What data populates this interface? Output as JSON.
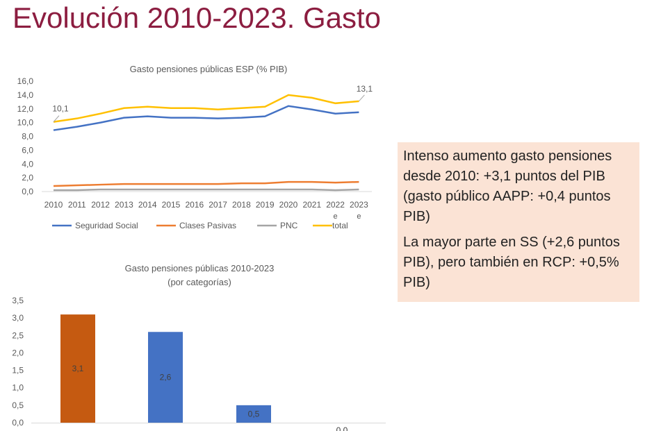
{
  "slide": {
    "title": "Evolución 2010-2023. Gasto"
  },
  "note": {
    "paragraphs": [
      "Intenso aumento gasto pensiones desde 2010: +3,1 puntos del PIB (gasto público AAPP: +0,4 puntos PIB)",
      "La mayor parte en SS (+2,6 puntos PIB), pero también en RCP: +0,5% PIB)"
    ]
  },
  "chart_data": [
    {
      "type": "line",
      "title": "Gasto pensiones públicas ESP (% PIB)",
      "categories": [
        "2010",
        "2011",
        "2012",
        "2013",
        "2014",
        "2015",
        "2016",
        "2017",
        "2018",
        "2019",
        "2020",
        "2021",
        "2022 e",
        "2023 e"
      ],
      "ylim": [
        0,
        16
      ],
      "yticks": [
        "0,0",
        "2,0",
        "4,0",
        "6,0",
        "8,0",
        "10,0",
        "12,0",
        "14,0",
        "16,0"
      ],
      "legend": "bottom",
      "grid": false,
      "series": [
        {
          "name": "Seguridad Social",
          "color": "#4472c4",
          "values": [
            8.9,
            9.4,
            10.0,
            10.7,
            10.9,
            10.7,
            10.7,
            10.6,
            10.7,
            10.9,
            12.4,
            11.9,
            11.3,
            11.5
          ]
        },
        {
          "name": "Clases Pasivas",
          "color": "#ed7d31",
          "values": [
            0.8,
            0.9,
            1.0,
            1.1,
            1.1,
            1.1,
            1.1,
            1.1,
            1.2,
            1.2,
            1.4,
            1.4,
            1.3,
            1.4
          ]
        },
        {
          "name": "PNC",
          "color": "#a5a5a5",
          "values": [
            0.2,
            0.2,
            0.3,
            0.3,
            0.3,
            0.3,
            0.3,
            0.3,
            0.3,
            0.3,
            0.3,
            0.3,
            0.2,
            0.3
          ]
        },
        {
          "name": "total",
          "color": "#ffc000",
          "values": [
            10.1,
            10.6,
            11.3,
            12.1,
            12.3,
            12.1,
            12.1,
            11.9,
            12.1,
            12.3,
            14.0,
            13.6,
            12.8,
            13.1
          ]
        }
      ],
      "annotations": [
        {
          "series": "total",
          "x": "2010",
          "label": "10,1"
        },
        {
          "series": "total",
          "x": "2023 e",
          "label": "13,1"
        }
      ]
    },
    {
      "type": "bar",
      "title": "Gasto pensiones públicas 2010-2023",
      "subtitle": "(por categorías)",
      "ylim": [
        0,
        3.5
      ],
      "yticks": [
        "0,0",
        "0,5",
        "1,0",
        "1,5",
        "2,0",
        "2,5",
        "3,0",
        "3,5"
      ],
      "values": [
        3.1,
        2.6,
        0.5,
        0.0
      ],
      "labels": [
        "3,1",
        "2,6",
        "0,5",
        "0,0"
      ],
      "colors": [
        "#c55a11",
        "#4472c4",
        "#4472c4",
        "#4472c4"
      ]
    }
  ]
}
